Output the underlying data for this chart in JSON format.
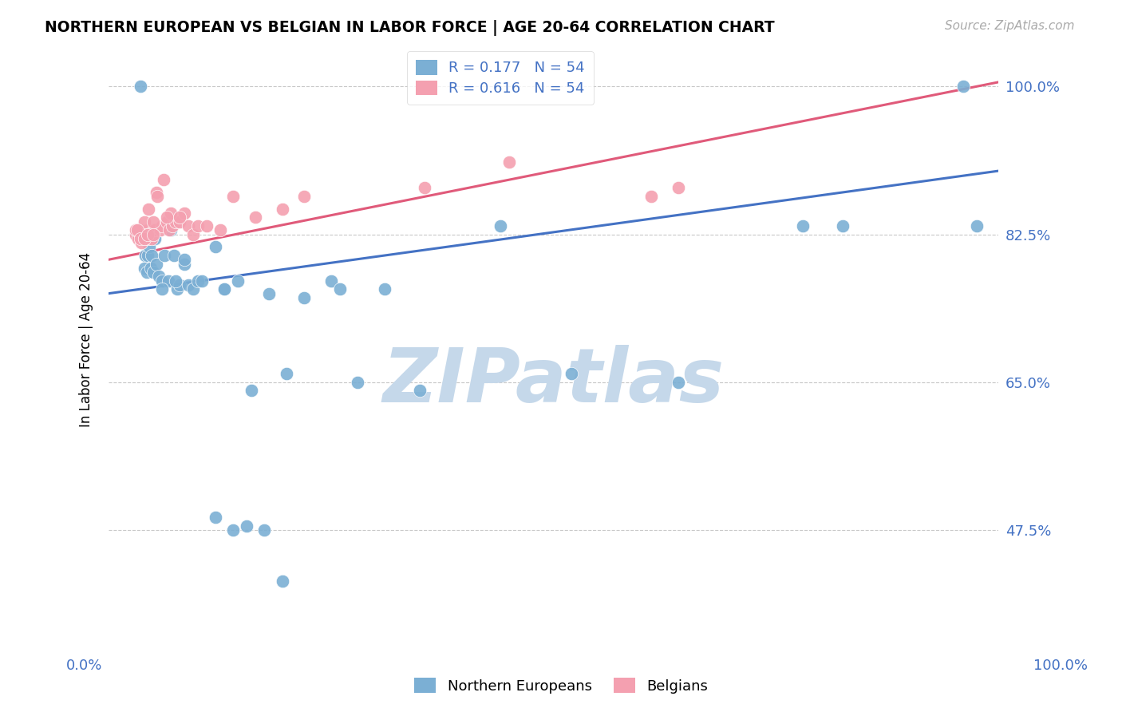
{
  "title": "NORTHERN EUROPEAN VS BELGIAN IN LABOR FORCE | AGE 20-64 CORRELATION CHART",
  "source": "Source: ZipAtlas.com",
  "ylabel": "In Labor Force | Age 20-64",
  "y_ticks": [
    "100.0%",
    "82.5%",
    "65.0%",
    "47.5%"
  ],
  "y_tick_vals": [
    1.0,
    0.825,
    0.65,
    0.475
  ],
  "xlim": [
    0.0,
    1.0
  ],
  "ylim": [
    0.35,
    1.05
  ],
  "color_blue": "#7bafd4",
  "color_pink": "#f4a0b0",
  "trendline_blue": "#4472c4",
  "trendline_pink": "#e05a7a",
  "watermark": "ZIPatlas",
  "watermark_color": "#c8d8e8",
  "legend_text_color": "#4472c4",
  "blue_x": [
    0.033,
    0.036,
    0.038,
    0.04,
    0.041,
    0.043,
    0.044,
    0.046,
    0.047,
    0.048,
    0.05,
    0.052,
    0.054,
    0.056,
    0.06,
    0.063,
    0.067,
    0.07,
    0.073,
    0.077,
    0.08,
    0.085,
    0.09,
    0.095,
    0.1,
    0.06,
    0.075,
    0.085,
    0.105,
    0.12,
    0.13,
    0.145,
    0.16,
    0.18,
    0.2,
    0.22,
    0.25,
    0.28,
    0.31,
    0.35,
    0.12,
    0.14,
    0.155,
    0.175,
    0.195,
    0.44,
    0.52,
    0.64,
    0.78,
    0.825,
    0.96,
    0.975,
    0.13,
    0.26
  ],
  "blue_y": [
    0.825,
    1.0,
    0.825,
    0.785,
    0.8,
    0.78,
    0.8,
    0.81,
    0.785,
    0.8,
    0.78,
    0.82,
    0.79,
    0.775,
    0.77,
    0.8,
    0.77,
    0.83,
    0.8,
    0.76,
    0.765,
    0.79,
    0.765,
    0.76,
    0.77,
    0.76,
    0.77,
    0.795,
    0.77,
    0.81,
    0.76,
    0.77,
    0.64,
    0.755,
    0.66,
    0.75,
    0.77,
    0.65,
    0.76,
    0.64,
    0.49,
    0.475,
    0.48,
    0.475,
    0.415,
    0.835,
    0.66,
    0.65,
    0.835,
    0.835,
    1.0,
    0.835,
    0.76,
    0.76
  ],
  "pink_x": [
    0.03,
    0.033,
    0.035,
    0.036,
    0.037,
    0.038,
    0.039,
    0.04,
    0.041,
    0.042,
    0.043,
    0.044,
    0.045,
    0.046,
    0.047,
    0.048,
    0.05,
    0.052,
    0.054,
    0.058,
    0.06,
    0.062,
    0.065,
    0.068,
    0.072,
    0.075,
    0.08,
    0.085,
    0.09,
    0.095,
    0.1,
    0.11,
    0.125,
    0.14,
    0.165,
    0.195,
    0.22,
    0.045,
    0.055,
    0.07,
    0.355,
    0.45,
    0.61,
    0.64,
    0.04,
    0.05,
    0.065,
    0.08,
    0.03,
    0.032,
    0.036,
    0.04,
    0.044,
    0.05
  ],
  "pink_y": [
    0.825,
    0.82,
    0.83,
    0.825,
    0.815,
    0.825,
    0.825,
    0.825,
    0.82,
    0.82,
    0.825,
    0.83,
    0.82,
    0.825,
    0.825,
    0.82,
    0.83,
    0.83,
    0.875,
    0.83,
    0.835,
    0.89,
    0.84,
    0.83,
    0.835,
    0.84,
    0.84,
    0.85,
    0.835,
    0.825,
    0.835,
    0.835,
    0.83,
    0.87,
    0.845,
    0.855,
    0.87,
    0.855,
    0.87,
    0.85,
    0.88,
    0.91,
    0.87,
    0.88,
    0.84,
    0.84,
    0.845,
    0.845,
    0.83,
    0.83,
    0.82,
    0.82,
    0.825,
    0.825
  ]
}
